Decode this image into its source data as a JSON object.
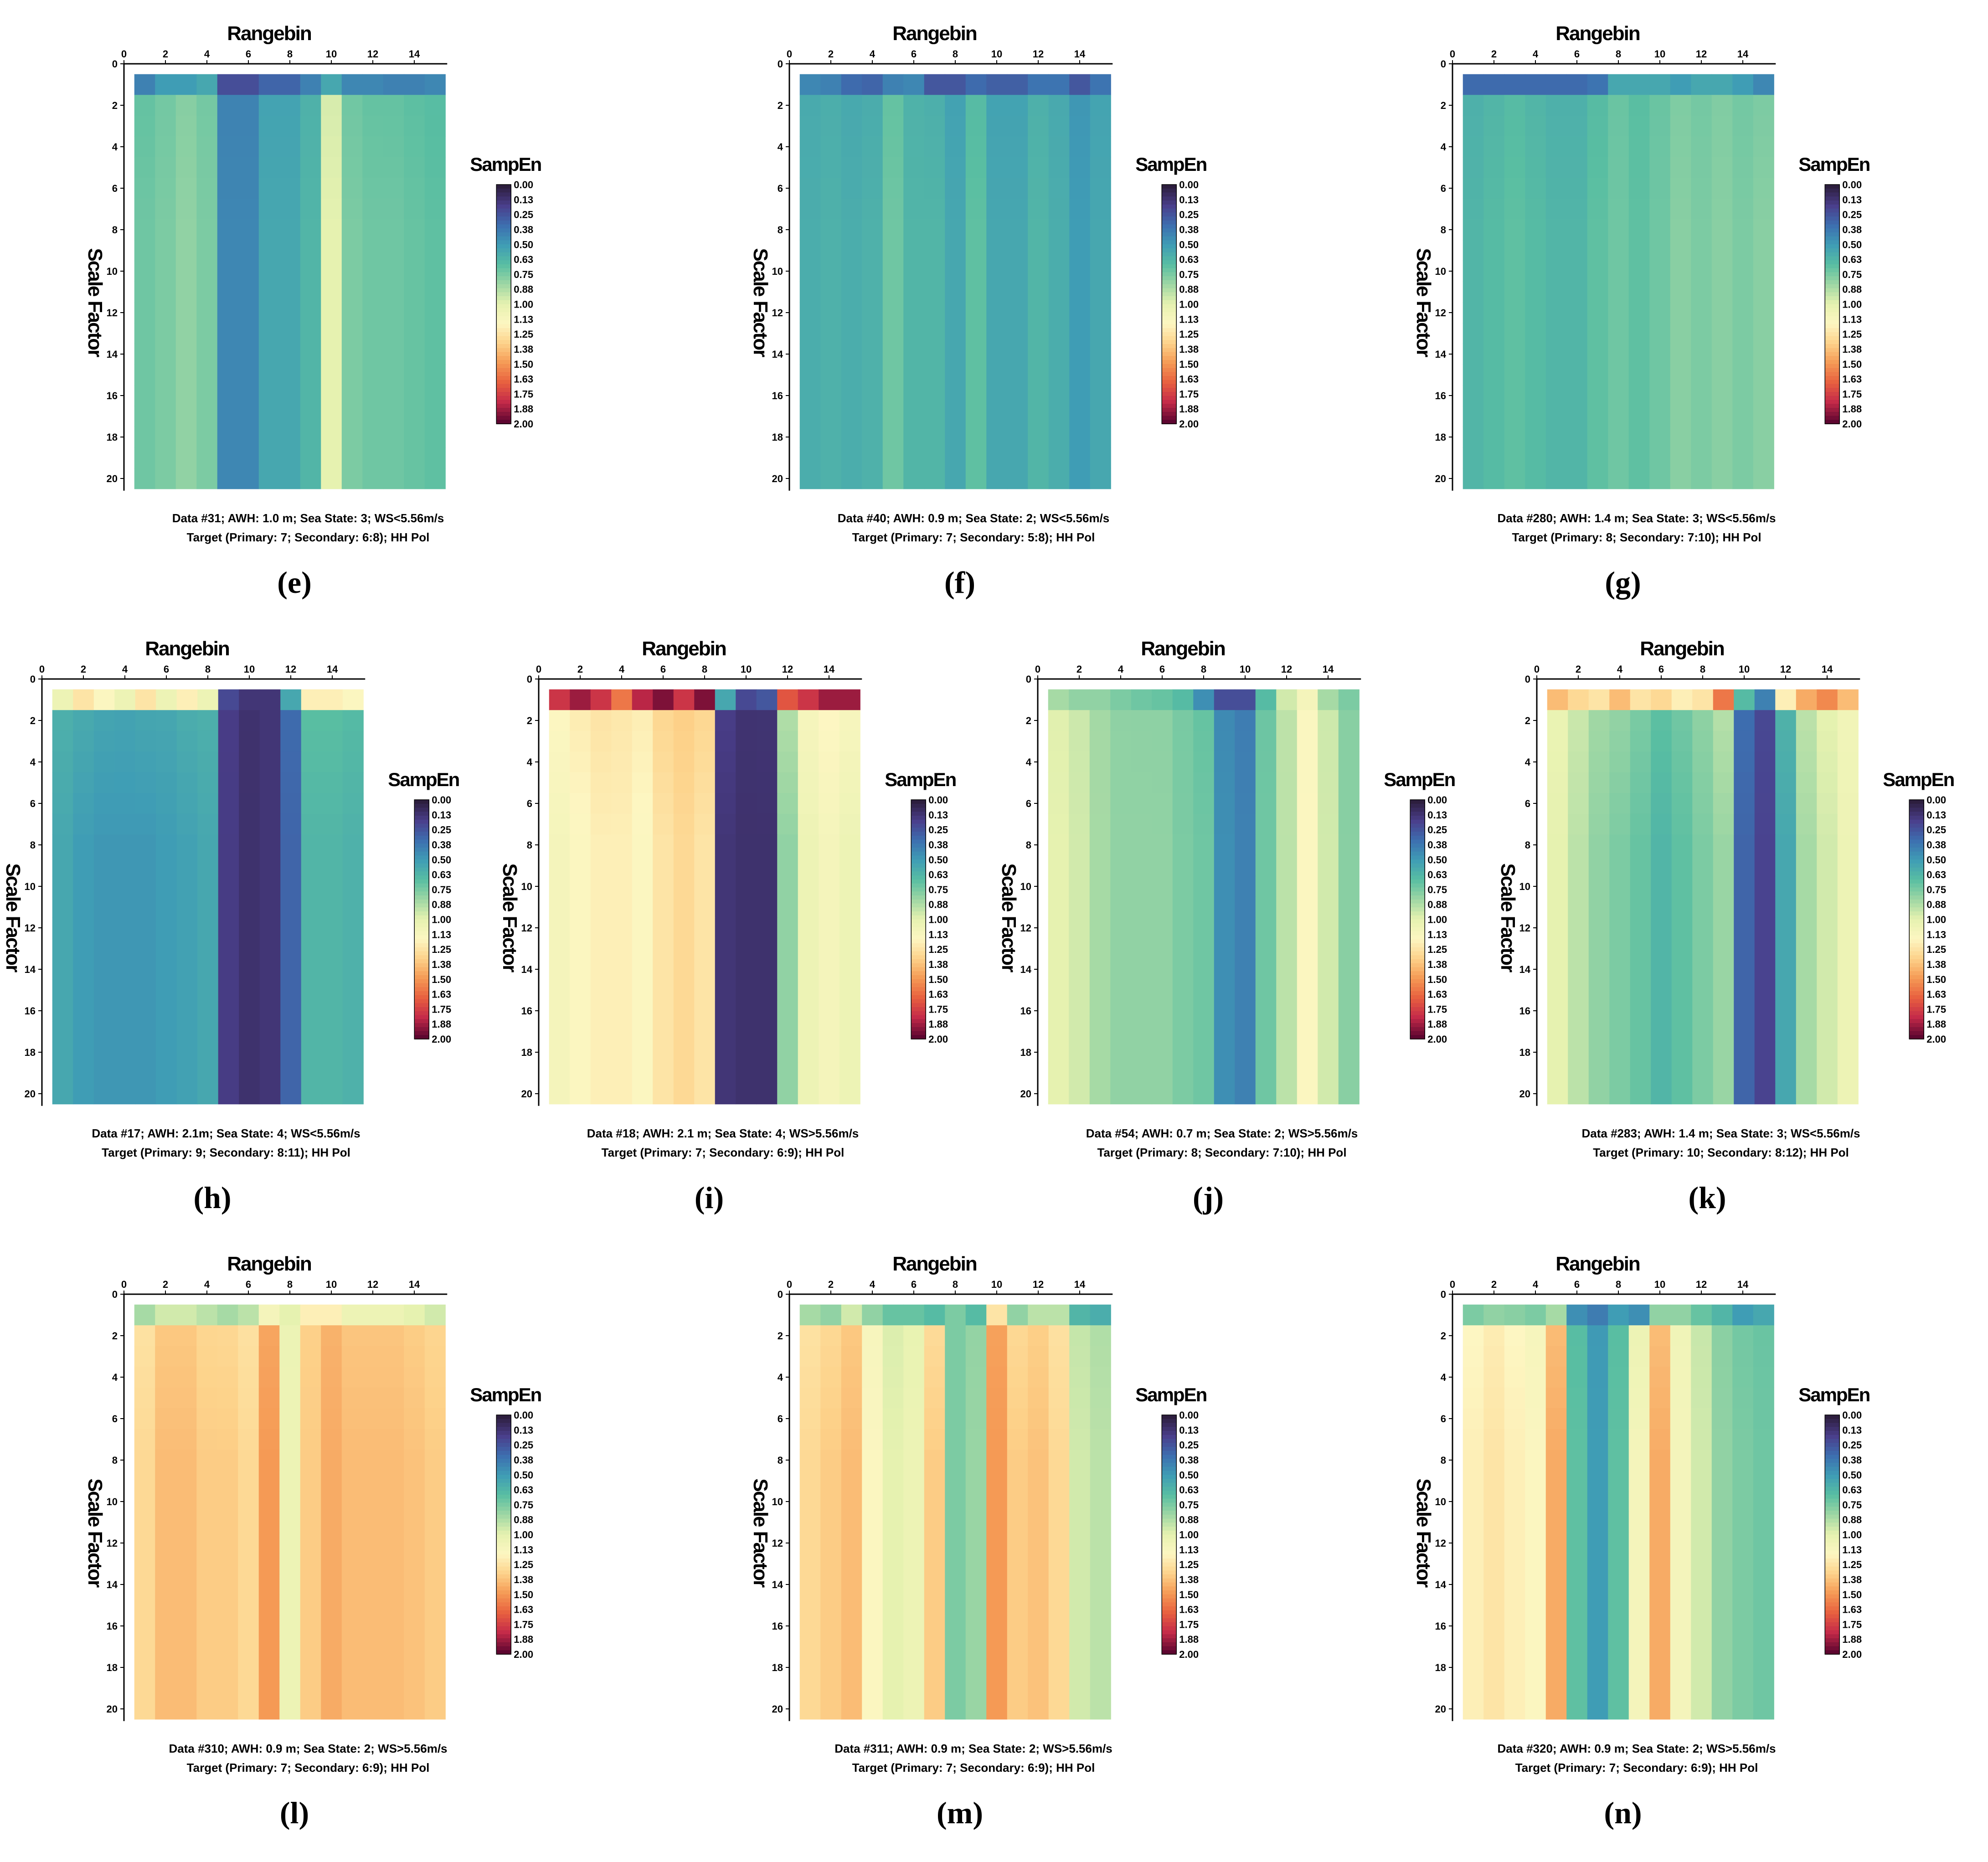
{
  "figure": {
    "x_title": "Rangebin",
    "y_title": "Scale Factor",
    "colorbar_title": "SampEn",
    "colorbar_ticks": [
      "0.00",
      "0.13",
      "0.25",
      "0.38",
      "0.50",
      "0.63",
      "0.75",
      "0.88",
      "1.00",
      "1.13",
      "1.25",
      "1.38",
      "1.50",
      "1.63",
      "1.75",
      "1.88",
      "2.00"
    ],
    "x_ticks": [
      "0",
      "2",
      "4",
      "6",
      "8",
      "10",
      "12",
      "14"
    ],
    "y_ticks": [
      "0",
      "2",
      "4",
      "6",
      "8",
      "10",
      "12",
      "14",
      "16",
      "18",
      "20"
    ]
  },
  "colors": {
    "scale_stops": [
      "#2d1e3e",
      "#4a3f8c",
      "#3d6fb0",
      "#3f9db5",
      "#59bea2",
      "#9fd7a4",
      "#e6f2b0",
      "#fdf6c2",
      "#fdd28a",
      "#f59a55",
      "#e8603f",
      "#c42a49",
      "#5e0630"
    ]
  },
  "chart_data": [
    {
      "panel": "(e)",
      "type": "heatmap",
      "caption_line1": "Data #31; AWH: 1.0 m; Sea State: 3; WS<5.56m/s",
      "caption_line2": "Target (Primary: 7; Secondary: 6:8); HH Pol",
      "xlabel": "Rangebin",
      "ylabel": "Scale Factor",
      "clim": [
        0,
        2
      ],
      "x_range": [
        0,
        14
      ],
      "y_range": [
        1,
        20
      ],
      "top_row": [
        0.4,
        0.5,
        0.5,
        0.55,
        0.22,
        0.22,
        0.3,
        0.3,
        0.4,
        0.55,
        0.42,
        0.42,
        0.4,
        0.4,
        0.42
      ],
      "body_row": [
        0.72,
        0.75,
        0.8,
        0.75,
        0.42,
        0.42,
        0.55,
        0.55,
        0.62,
        1.0,
        0.75,
        0.72,
        0.72,
        0.7,
        0.68
      ]
    },
    {
      "panel": "(f)",
      "type": "heatmap",
      "caption_line1": "Data #40; AWH: 0.9 m; Sea State: 2; WS<5.56m/s",
      "caption_line2": "Target (Primary: 7; Secondary: 5:8); HH Pol",
      "xlabel": "Rangebin",
      "ylabel": "Scale Factor",
      "clim": [
        0,
        2
      ],
      "x_range": [
        0,
        14
      ],
      "y_range": [
        1,
        20
      ],
      "top_row": [
        0.42,
        0.4,
        0.32,
        0.3,
        0.4,
        0.42,
        0.25,
        0.25,
        0.32,
        0.28,
        0.28,
        0.35,
        0.35,
        0.25,
        0.35
      ],
      "body_row": [
        0.58,
        0.6,
        0.58,
        0.6,
        0.72,
        0.62,
        0.62,
        0.55,
        0.68,
        0.55,
        0.55,
        0.62,
        0.58,
        0.5,
        0.55
      ]
    },
    {
      "panel": "(g)",
      "type": "heatmap",
      "caption_line1": "Data #280; AWH: 1.4 m; Sea State: 3; WS<5.56m/s",
      "caption_line2": "Target (Primary: 8; Secondary: 7:10); HH Pol",
      "xlabel": "Rangebin",
      "ylabel": "Scale Factor",
      "clim": [
        0,
        2
      ],
      "x_range": [
        0,
        14
      ],
      "y_range": [
        1,
        20
      ],
      "top_row": [
        0.32,
        0.32,
        0.32,
        0.32,
        0.32,
        0.32,
        0.35,
        0.55,
        0.55,
        0.55,
        0.5,
        0.55,
        0.55,
        0.5,
        0.42
      ],
      "body_row": [
        0.62,
        0.65,
        0.68,
        0.65,
        0.62,
        0.62,
        0.68,
        0.72,
        0.68,
        0.72,
        0.78,
        0.75,
        0.78,
        0.75,
        0.78
      ]
    },
    {
      "panel": "(h)",
      "type": "heatmap",
      "caption_line1": "Data #17; AWH: 2.1m; Sea State: 4; WS<5.56m/s",
      "caption_line2": "Target (Primary: 9; Secondary: 8:11); HH Pol",
      "xlabel": "Rangebin",
      "ylabel": "Scale Factor",
      "clim": [
        0,
        2
      ],
      "x_range": [
        0,
        14
      ],
      "y_range": [
        1,
        20
      ],
      "top_row": [
        1.05,
        1.25,
        1.15,
        1.05,
        1.25,
        1.05,
        1.2,
        1.05,
        0.2,
        0.12,
        0.12,
        0.55,
        1.2,
        1.2,
        1.15
      ],
      "body_row": [
        0.55,
        0.5,
        0.48,
        0.48,
        0.48,
        0.5,
        0.52,
        0.55,
        0.15,
        0.1,
        0.12,
        0.3,
        0.62,
        0.62,
        0.6
      ]
    },
    {
      "panel": "(i)",
      "type": "heatmap",
      "caption_line1": "Data #18; AWH: 2.1 m; Sea State: 4; WS>5.56m/s",
      "caption_line2": "Target (Primary: 7; Secondary: 6:9); HH Pol",
      "xlabel": "Rangebin",
      "ylabel": "Scale Factor",
      "clim": [
        0,
        2
      ],
      "x_range": [
        0,
        14
      ],
      "y_range": [
        1,
        20
      ],
      "top_row": [
        1.8,
        1.9,
        1.8,
        1.6,
        1.85,
        1.95,
        1.8,
        1.95,
        0.55,
        0.2,
        0.25,
        1.7,
        1.8,
        1.9,
        1.9
      ],
      "body_row": [
        1.1,
        1.15,
        1.2,
        1.2,
        1.15,
        1.25,
        1.3,
        1.25,
        0.12,
        0.1,
        0.1,
        0.8,
        1.05,
        1.1,
        1.05
      ]
    },
    {
      "panel": "(j)",
      "type": "heatmap",
      "caption_line1": "Data #54; AWH: 0.7 m; Sea State: 2; WS>5.56m/s",
      "caption_line2": "Target (Primary: 8; Secondary: 7:10); HH Pol",
      "xlabel": "Rangebin",
      "ylabel": "Scale Factor",
      "clim": [
        0,
        2
      ],
      "x_range": [
        0,
        14
      ],
      "y_range": [
        1,
        20
      ],
      "top_row": [
        0.85,
        0.8,
        0.8,
        0.75,
        0.72,
        0.7,
        0.65,
        0.45,
        0.22,
        0.22,
        0.65,
        0.95,
        1.1,
        0.85,
        0.75
      ],
      "body_row": [
        1.0,
        0.95,
        0.85,
        0.8,
        0.8,
        0.8,
        0.75,
        0.72,
        0.45,
        0.4,
        0.72,
        0.9,
        1.15,
        0.95,
        0.78
      ]
    },
    {
      "panel": "(k)",
      "type": "heatmap",
      "caption_line1": "Data #283; AWH: 1.4 m; Sea State: 3; WS<5.56m/s",
      "caption_line2": "Target (Primary: 10; Secondary: 8:12); HH Pol",
      "xlabel": "Rangebin",
      "ylabel": "Scale Factor",
      "clim": [
        0,
        2
      ],
      "x_range": [
        0,
        14
      ],
      "y_range": [
        1,
        20
      ],
      "top_row": [
        1.4,
        1.3,
        1.25,
        1.4,
        1.25,
        1.3,
        1.2,
        1.25,
        1.6,
        0.65,
        0.4,
        1.2,
        1.45,
        1.55,
        1.4
      ],
      "body_row": [
        1.0,
        0.9,
        0.8,
        0.75,
        0.7,
        0.62,
        0.68,
        0.75,
        0.82,
        0.3,
        0.18,
        0.55,
        0.85,
        0.95,
        1.05
      ]
    },
    {
      "panel": "(l)",
      "type": "heatmap",
      "caption_line1": "Data #310; AWH: 0.9 m; Sea State: 2; WS>5.56m/s",
      "caption_line2": "Target (Primary: 7; Secondary: 6:9); HH Pol",
      "xlabel": "Rangebin",
      "ylabel": "Scale Factor",
      "clim": [
        0,
        2
      ],
      "x_range": [
        0,
        14
      ],
      "y_range": [
        1,
        20
      ],
      "top_row": [
        0.85,
        0.95,
        0.95,
        0.9,
        0.85,
        0.9,
        1.1,
        1.0,
        1.2,
        1.2,
        1.05,
        1.05,
        1.05,
        1.0,
        0.95
      ],
      "body_row": [
        1.3,
        1.4,
        1.4,
        1.35,
        1.35,
        1.3,
        1.5,
        1.05,
        1.35,
        1.45,
        1.4,
        1.4,
        1.4,
        1.38,
        1.35
      ]
    },
    {
      "panel": "(m)",
      "type": "heatmap",
      "caption_line1": "Data #311; AWH: 0.9 m; Sea State: 2; WS>5.56m/s",
      "caption_line2": "Target (Primary: 7; Secondary: 6:9); HH Pol",
      "xlabel": "Rangebin",
      "ylabel": "Scale Factor",
      "clim": [
        0,
        2
      ],
      "x_range": [
        0,
        14
      ],
      "y_range": [
        1,
        20
      ],
      "top_row": [
        0.85,
        0.8,
        0.95,
        0.8,
        0.7,
        0.7,
        0.65,
        0.75,
        0.65,
        1.25,
        0.8,
        0.9,
        0.9,
        0.62,
        0.58
      ],
      "body_row": [
        1.3,
        1.35,
        1.4,
        1.15,
        1.0,
        1.05,
        1.35,
        0.75,
        0.82,
        1.5,
        1.35,
        1.38,
        1.3,
        0.95,
        0.9
      ]
    },
    {
      "panel": "(n)",
      "type": "heatmap",
      "caption_line1": "Data #320; AWH: 0.9 m; Sea State: 2; WS>5.56m/s",
      "caption_line2": "Target (Primary: 7; Secondary: 6:9); HH Pol",
      "xlabel": "Rangebin",
      "ylabel": "Scale Factor",
      "clim": [
        0,
        2
      ],
      "x_range": [
        0,
        14
      ],
      "y_range": [
        1,
        20
      ],
      "top_row": [
        0.75,
        0.8,
        0.78,
        0.75,
        0.85,
        0.45,
        0.38,
        0.5,
        0.45,
        0.8,
        0.8,
        0.7,
        0.62,
        0.5,
        0.55
      ],
      "body_row": [
        1.2,
        1.25,
        1.2,
        1.15,
        1.45,
        0.68,
        0.5,
        0.68,
        1.1,
        1.45,
        1.1,
        0.95,
        0.8,
        0.75,
        0.72
      ]
    }
  ]
}
